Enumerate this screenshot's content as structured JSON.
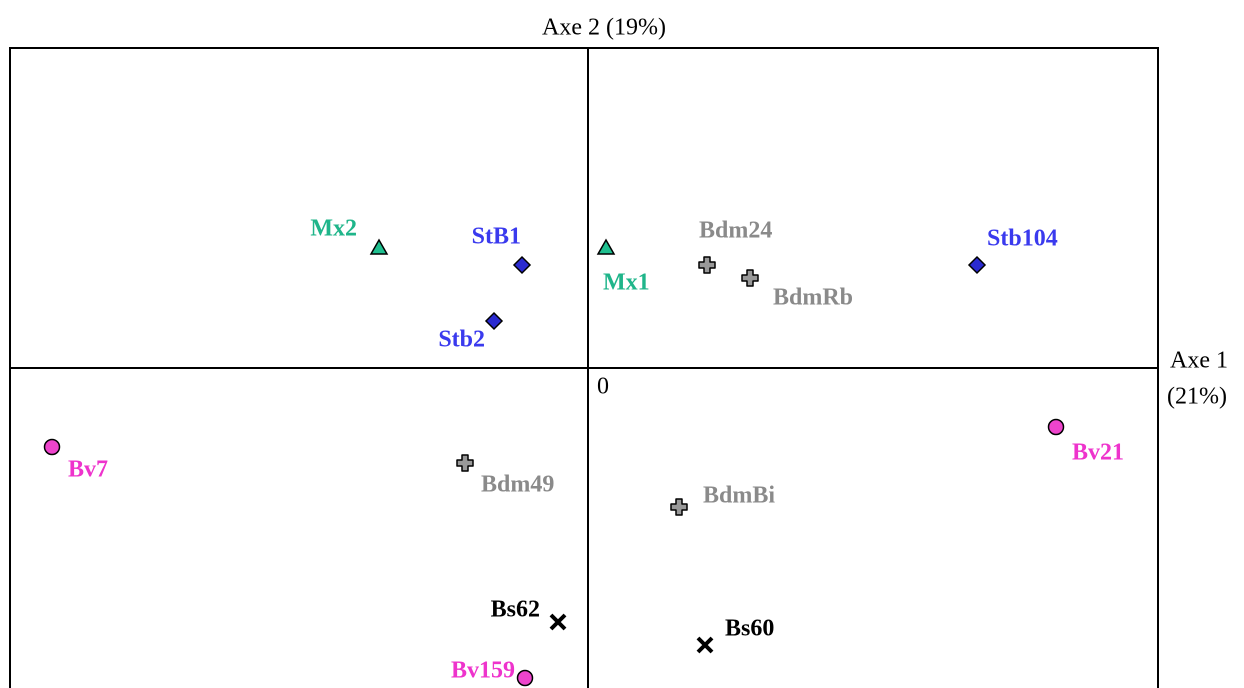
{
  "chart_data": {
    "type": "scatter",
    "ylabel": "Axe 2 (19%)",
    "xlabel": [
      "Axe 1",
      "(21%)"
    ],
    "xlim": [
      -5.78,
      5.7
    ],
    "ylim": [
      -3.2,
      3.2
    ],
    "xticks": [
      0
    ],
    "yticks": [
      0
    ],
    "series": [
      {
        "marker": "triangle",
        "color": "#1fbf8f",
        "label_color": "#1fb58a",
        "labels": [
          "Mx2",
          "Mx1"
        ],
        "x": [
          -2.09,
          0.18
        ],
        "y": [
          1.2,
          1.2
        ]
      },
      {
        "marker": "diamond",
        "color": "#2a2ad0",
        "label_color": "#3a3aee",
        "labels": [
          "StB1",
          "Stb2",
          "Stb104"
        ],
        "x": [
          -0.66,
          -0.94,
          3.89
        ],
        "y": [
          1.03,
          0.47,
          1.03
        ]
      },
      {
        "marker": "plus",
        "color": "#999999",
        "label_color": "#8a8a8a",
        "labels": [
          "Bdm24",
          "BdmRb",
          "Bdm49",
          "BdmBi"
        ],
        "x": [
          1.19,
          1.62,
          -1.23,
          0.91
        ],
        "y": [
          1.03,
          0.9,
          -0.95,
          -1.39
        ]
      },
      {
        "marker": "circle",
        "color": "#ee44cc",
        "label_color": "#ee33cc",
        "labels": [
          "Bv7",
          "Bv21",
          "Bv159"
        ],
        "x": [
          -5.36,
          4.68,
          -0.63
        ],
        "y": [
          -0.79,
          -0.59,
          -3.1
        ]
      },
      {
        "marker": "x",
        "color": "#000000",
        "label_color": "#000000",
        "labels": [
          "Bs62",
          "Bs60"
        ],
        "x": [
          -0.3,
          1.17
        ],
        "y": [
          -2.54,
          -2.77
        ]
      }
    ]
  }
}
